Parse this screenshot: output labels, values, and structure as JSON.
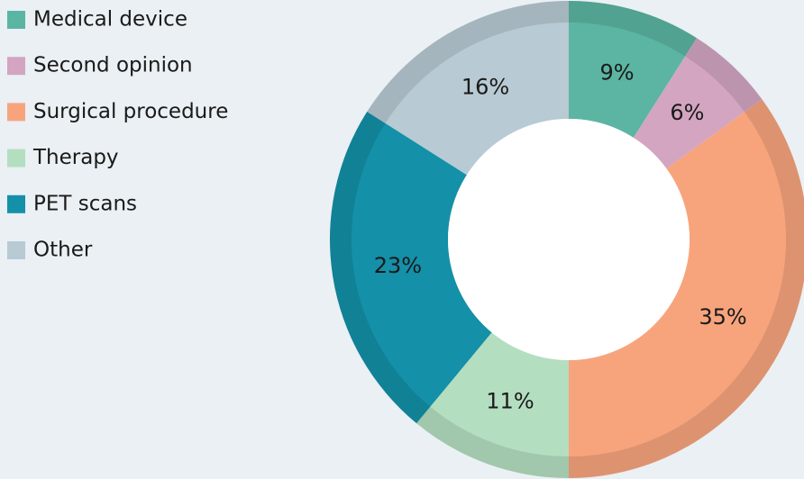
{
  "chart_data": {
    "type": "donut",
    "categories": [
      "Medical device",
      "Second opinion",
      "Surgical procedure",
      "Therapy",
      "PET scans",
      "Other"
    ],
    "values": [
      9,
      6,
      35,
      11,
      23,
      16
    ],
    "value_labels": [
      "9%",
      "6%",
      "35%",
      "11%",
      "23%",
      "16%"
    ],
    "colors": [
      "#5bb5a2",
      "#d3a5c1",
      "#f7a47d",
      "#b4dec0",
      "#1490a8",
      "#b8cad3"
    ],
    "legend": "top-left"
  }
}
